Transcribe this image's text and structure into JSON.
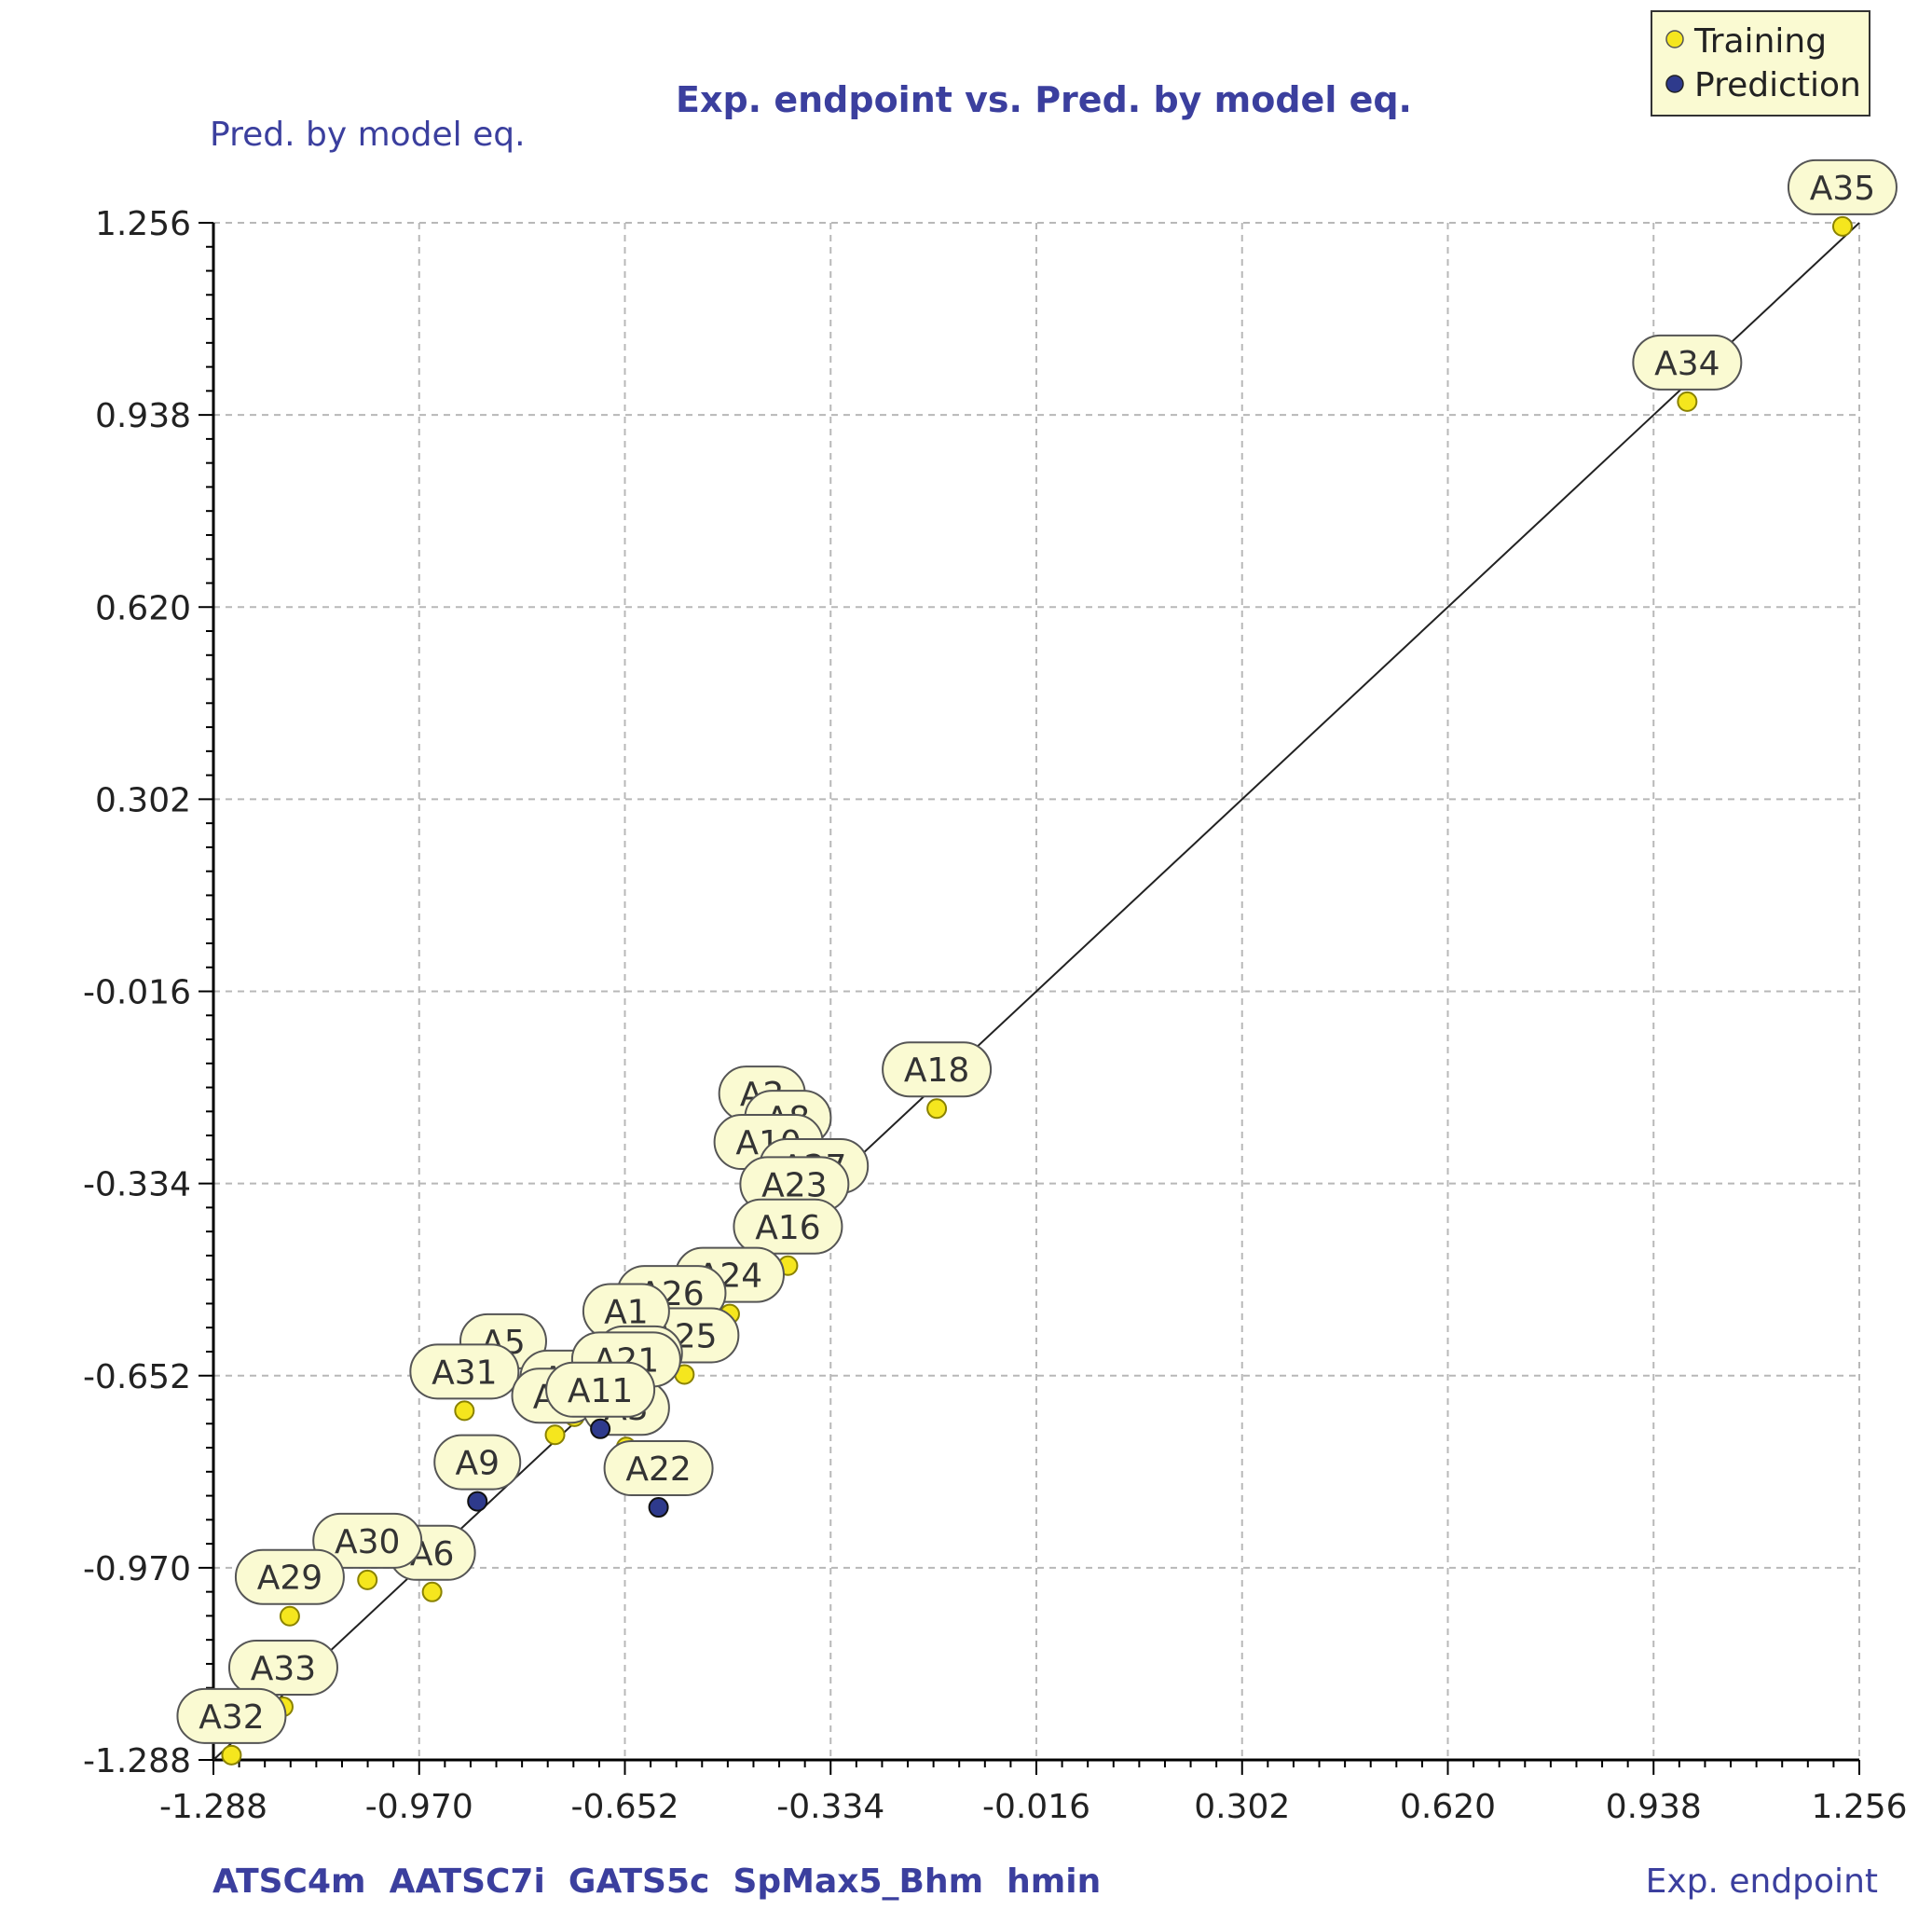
{
  "chart_data": {
    "type": "scatter",
    "title": "Exp. endpoint vs. Pred. by model eq.",
    "xlabel": "Exp. endpoint",
    "ylabel": "Pred. by model eq.",
    "descriptors": "ATSC4m  AATSC7i  GATS5c  SpMax5_Bhm  hmin",
    "xlim": [
      -1.288,
      1.256
    ],
    "ylim": [
      -1.288,
      1.256
    ],
    "x_ticks": [
      "-1.288",
      "-0.970",
      "-0.652",
      "-0.334",
      "-0.016",
      "0.302",
      "0.620",
      "0.938",
      "1.256"
    ],
    "y_ticks": [
      "1.256",
      "0.938",
      "0.620",
      "0.302",
      "-0.016",
      "-0.334",
      "-0.652",
      "-0.970",
      "-1.288"
    ],
    "grid": true,
    "legend_position": "top-right",
    "fit_line": {
      "x": [
        -1.288,
        1.256
      ],
      "y": [
        -1.288,
        1.256
      ]
    },
    "colors": {
      "training": "#f5e61e",
      "prediction": "#2e3a8c",
      "label_fill": "#fafad2",
      "label_stroke": "#555555",
      "title": "#3b3f9e"
    },
    "series": [
      {
        "name": "Training",
        "points": [
          {
            "label": "A35",
            "x": 1.23,
            "y": 1.25
          },
          {
            "label": "A34",
            "x": 0.99,
            "y": 0.96
          },
          {
            "label": "A18",
            "x": -0.17,
            "y": -0.21
          },
          {
            "label": "A2",
            "x": -0.44,
            "y": -0.25
          },
          {
            "label": "A8",
            "x": -0.4,
            "y": -0.29
          },
          {
            "label": "A10",
            "x": -0.43,
            "y": -0.33
          },
          {
            "label": "A27",
            "x": -0.36,
            "y": -0.37
          },
          {
            "label": "A23",
            "x": -0.39,
            "y": -0.4
          },
          {
            "label": "A16",
            "x": -0.4,
            "y": -0.47
          },
          {
            "label": "A24",
            "x": -0.49,
            "y": -0.55
          },
          {
            "label": "A26",
            "x": -0.58,
            "y": -0.58
          },
          {
            "label": "A25",
            "x": -0.56,
            "y": -0.65
          },
          {
            "label": "A1",
            "x": -0.65,
            "y": -0.61
          },
          {
            "label": "A7",
            "x": -0.63,
            "y": -0.68
          },
          {
            "label": "A5",
            "x": -0.84,
            "y": -0.66
          },
          {
            "label": "A31",
            "x": -0.9,
            "y": -0.71
          },
          {
            "label": "A12",
            "x": -0.73,
            "y": -0.72
          },
          {
            "label": "A4",
            "x": -0.76,
            "y": -0.75
          },
          {
            "label": "A3",
            "x": -0.65,
            "y": -0.77
          },
          {
            "label": "A6",
            "x": -0.95,
            "y": -1.01
          },
          {
            "label": "A30",
            "x": -1.05,
            "y": -0.99
          },
          {
            "label": "A29",
            "x": -1.17,
            "y": -1.05
          },
          {
            "label": "A33",
            "x": -1.18,
            "y": -1.2
          },
          {
            "label": "A32",
            "x": -1.26,
            "y": -1.28
          }
        ]
      },
      {
        "name": "Prediction",
        "points": [
          {
            "label": "A22",
            "x": -0.6,
            "y": -0.87
          },
          {
            "label": "A9",
            "x": -0.88,
            "y": -0.86
          },
          {
            "label": "A21",
            "x": -0.65,
            "y": -0.69
          },
          {
            "label": "A11",
            "x": -0.69,
            "y": -0.74
          }
        ]
      }
    ]
  }
}
